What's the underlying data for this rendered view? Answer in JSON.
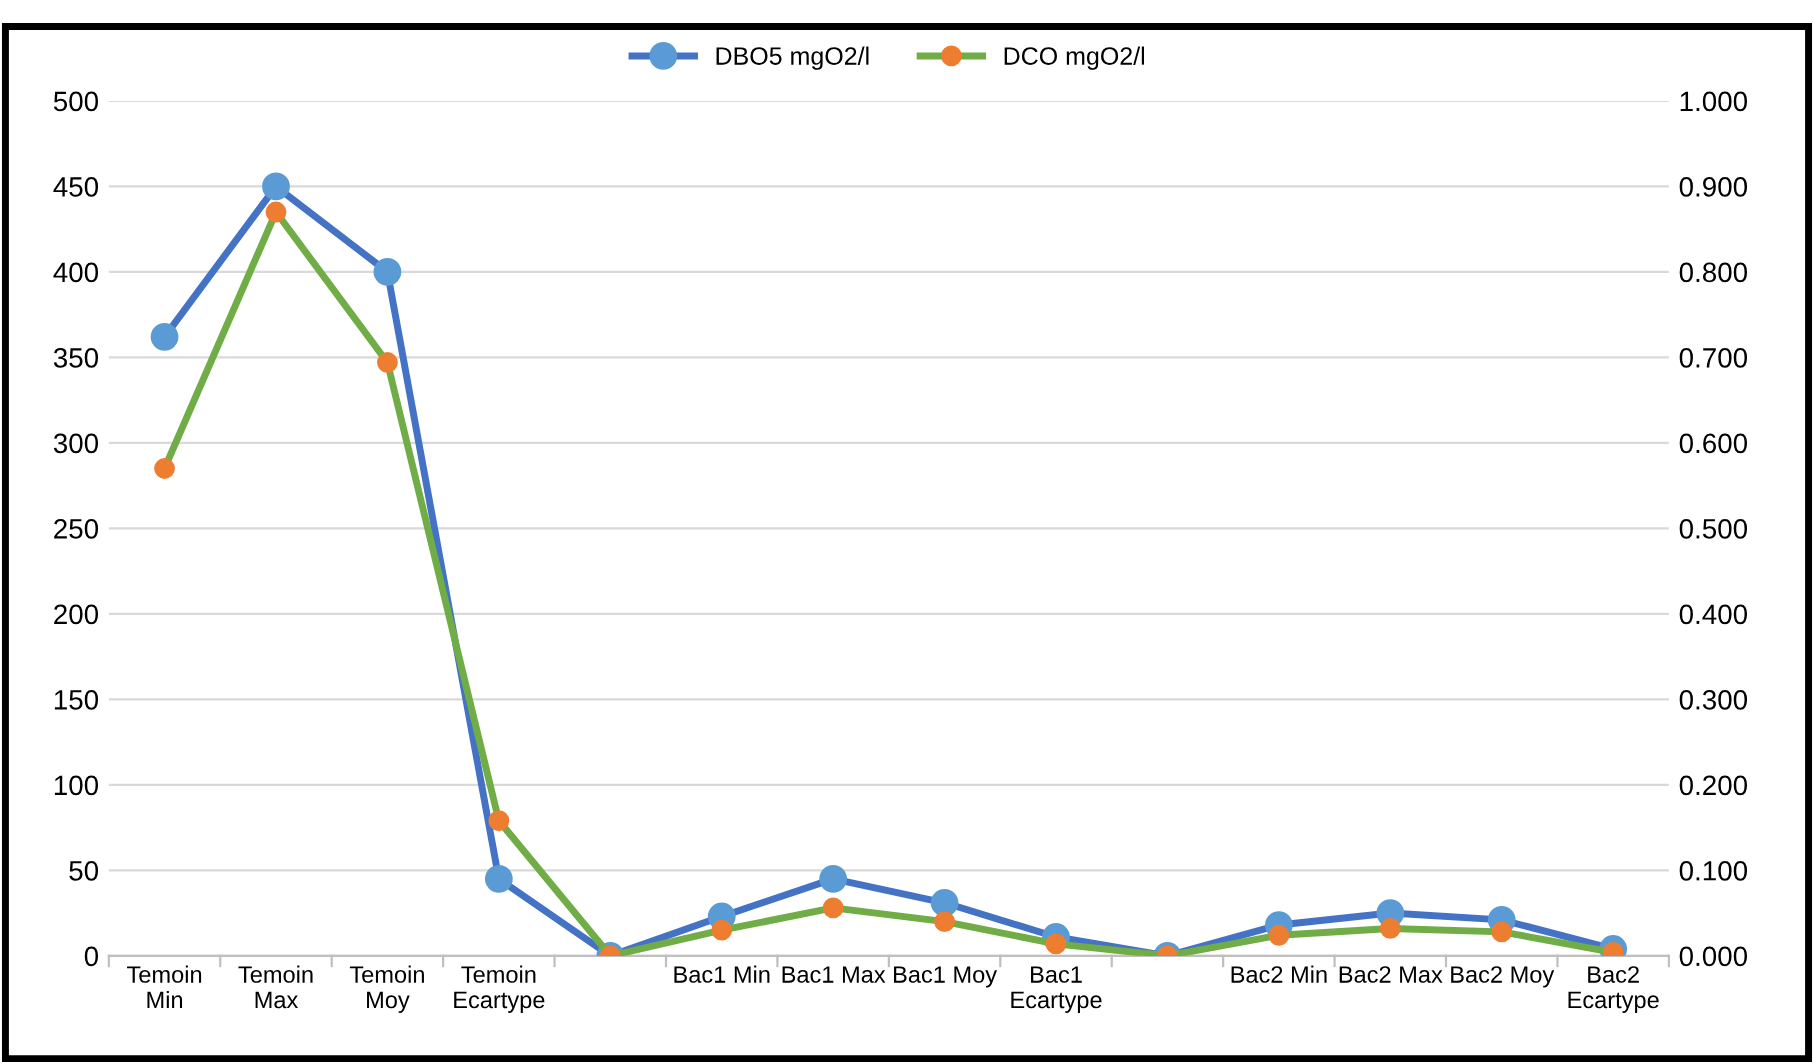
{
  "chart_data": {
    "type": "line",
    "categories": [
      "Temoin Min",
      "Temoin Max",
      "Temoin Moy",
      "Temoin Ecartype",
      null,
      "Bac1 Min",
      "Bac1 Max",
      "Bac1 Moy",
      "Bac1 Ecartype",
      null,
      "Bac2 Min",
      "Bac2 Max",
      "Bac2 Moy",
      "Bac2 Ecartype"
    ],
    "series": [
      {
        "name": "DBO5 mgO2/l",
        "color": "#4472c4",
        "values": [
          362,
          450,
          400,
          45,
          0,
          23,
          45,
          31,
          11,
          0,
          18,
          25,
          21,
          4
        ]
      },
      {
        "name": "DCO mgO2/l",
        "color": "#70ad47",
        "values": [
          285,
          435,
          347,
          79,
          0,
          15,
          28,
          20,
          7,
          0,
          12,
          16,
          14,
          2
        ]
      }
    ],
    "marker": "circle",
    "ylim": [
      0,
      500
    ],
    "yticks": [
      0,
      50,
      100,
      150,
      200,
      250,
      300,
      350,
      400,
      450,
      500
    ],
    "y2lim": [
      0,
      1.0
    ],
    "y2ticks": [
      {
        "value": 0,
        "label": "0.000"
      },
      {
        "value": 0.1,
        "label": "0.100"
      },
      {
        "value": 0.2,
        "label": "0.200"
      },
      {
        "value": 0.3,
        "label": "0.300"
      },
      {
        "value": 0.4,
        "label": "0.400"
      },
      {
        "value": 0.5,
        "label": "0.500"
      },
      {
        "value": 0.6,
        "label": "0.600"
      },
      {
        "value": 0.7,
        "label": "0.700"
      },
      {
        "value": 0.8,
        "label": "0.800"
      },
      {
        "value": 0.9,
        "label": "0.900"
      },
      {
        "value": 1.0,
        "label": "1.000"
      }
    ],
    "grid": "y",
    "legend": "top"
  }
}
